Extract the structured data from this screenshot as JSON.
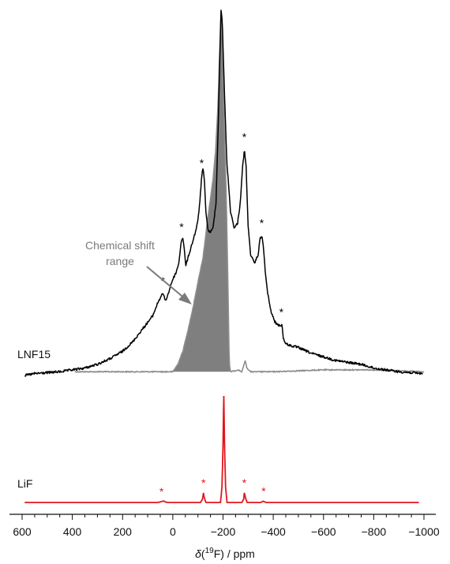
{
  "chart_data": {
    "type": "line",
    "title": "",
    "xlabel": {
      "italic": "δ",
      "pre": "(",
      "sup": "19",
      "post": "F) / ppm"
    },
    "xlim": [
      610,
      -1030
    ],
    "x_ticks": [
      600,
      400,
      200,
      0,
      -200,
      -400,
      -600,
      -800,
      -1000
    ],
    "x_tick_labels": [
      "600",
      "400",
      "200",
      "0",
      "−200",
      "−400",
      "−600",
      "−800",
      "−1000"
    ],
    "colors": {
      "lnf15": "#000000",
      "range_fill": "#7f7f7f",
      "range_line": "#8c8c8c",
      "lif": "#e3161d",
      "annotation": "#7a7a7a"
    },
    "series": [
      {
        "name": "LNF15",
        "style": "black",
        "baseline": 0.02,
        "points": [
          [
            590,
            0.0
          ],
          [
            550,
            0.01
          ],
          [
            500,
            0.015
          ],
          [
            450,
            0.02
          ],
          [
            400,
            0.03
          ],
          [
            350,
            0.04
          ],
          [
            300,
            0.06
          ],
          [
            250,
            0.09
          ],
          [
            200,
            0.13
          ],
          [
            160,
            0.18
          ],
          [
            120,
            0.25
          ],
          [
            80,
            0.32
          ],
          [
            60,
            0.39
          ],
          [
            45,
            0.43
          ],
          [
            38,
            0.44
          ],
          [
            30,
            0.4
          ],
          [
            20,
            0.43
          ],
          [
            5,
            0.5
          ],
          [
            -5,
            0.53
          ],
          [
            -15,
            0.56
          ],
          [
            -25,
            0.61
          ],
          [
            -33,
            0.72
          ],
          [
            -40,
            0.74
          ],
          [
            -47,
            0.66
          ],
          [
            -52,
            0.59
          ],
          [
            -60,
            0.63
          ],
          [
            -75,
            0.7
          ],
          [
            -90,
            0.77
          ],
          [
            -100,
            0.83
          ],
          [
            -108,
            0.94
          ],
          [
            -115,
            1.07
          ],
          [
            -120,
            1.11
          ],
          [
            -125,
            1.06
          ],
          [
            -132,
            0.88
          ],
          [
            -140,
            0.78
          ],
          [
            -150,
            0.77
          ],
          [
            -160,
            0.79
          ],
          [
            -172,
            0.93
          ],
          [
            -180,
            1.3
          ],
          [
            -187,
            1.7
          ],
          [
            -192,
            1.96
          ],
          [
            -197,
            1.9
          ],
          [
            -205,
            1.55
          ],
          [
            -215,
            1.15
          ],
          [
            -230,
            0.88
          ],
          [
            -245,
            0.79
          ],
          [
            -258,
            0.82
          ],
          [
            -268,
            0.92
          ],
          [
            -278,
            1.12
          ],
          [
            -285,
            1.21
          ],
          [
            -292,
            1.12
          ],
          [
            -300,
            0.8
          ],
          [
            -310,
            0.65
          ],
          [
            -325,
            0.6
          ],
          [
            -340,
            0.65
          ],
          [
            -348,
            0.74
          ],
          [
            -355,
            0.75
          ],
          [
            -362,
            0.67
          ],
          [
            -370,
            0.53
          ],
          [
            -378,
            0.44
          ],
          [
            -390,
            0.35
          ],
          [
            -405,
            0.29
          ],
          [
            -420,
            0.27
          ],
          [
            -435,
            0.27
          ],
          [
            -440,
            0.2
          ],
          [
            -450,
            0.17
          ],
          [
            -470,
            0.16
          ],
          [
            -500,
            0.15
          ],
          [
            -550,
            0.12
          ],
          [
            -600,
            0.1
          ],
          [
            -650,
            0.08
          ],
          [
            -700,
            0.07
          ],
          [
            -750,
            0.06
          ],
          [
            -800,
            0.04
          ],
          [
            -850,
            0.03
          ],
          [
            -900,
            0.02
          ],
          [
            -950,
            0.015
          ],
          [
            -995,
            0.01
          ]
        ]
      },
      {
        "name": "Chemical shift range",
        "style": "gray-fill",
        "baseline": 0.02,
        "points": [
          [
            390,
            0.02
          ],
          [
            200,
            0.02
          ],
          [
            100,
            0.02
          ],
          [
            50,
            0.02
          ],
          [
            0,
            0.02
          ],
          [
            -20,
            0.06
          ],
          [
            -40,
            0.13
          ],
          [
            -60,
            0.24
          ],
          [
            -80,
            0.36
          ],
          [
            -100,
            0.5
          ],
          [
            -120,
            0.63
          ],
          [
            -140,
            0.85
          ],
          [
            -160,
            1.05
          ],
          [
            -170,
            1.2
          ],
          [
            -180,
            1.45
          ],
          [
            -187,
            1.75
          ],
          [
            -192,
            1.96
          ],
          [
            -198,
            1.7
          ],
          [
            -205,
            1.35
          ],
          [
            -212,
            1.0
          ],
          [
            -218,
            0.6
          ],
          [
            -222,
            0.28
          ],
          [
            -225,
            0.06
          ],
          [
            -230,
            0.02
          ],
          [
            -260,
            0.03
          ],
          [
            -275,
            0.02
          ],
          [
            -282,
            0.05
          ],
          [
            -288,
            0.08
          ],
          [
            -295,
            0.04
          ],
          [
            -310,
            0.02
          ],
          [
            -400,
            0.02
          ],
          [
            -600,
            0.03
          ],
          [
            -800,
            0.03
          ],
          [
            -1000,
            0.02
          ]
        ]
      },
      {
        "name": "LiF",
        "style": "red",
        "baseline": 0.0,
        "points": [
          [
            590,
            0.0
          ],
          [
            60,
            0.0
          ],
          [
            50,
            0.005
          ],
          [
            40,
            0.012
          ],
          [
            35,
            0.013
          ],
          [
            30,
            0.005
          ],
          [
            20,
            0.0
          ],
          [
            -110,
            0.0
          ],
          [
            -118,
            0.03
          ],
          [
            -122,
            0.09
          ],
          [
            -126,
            0.04
          ],
          [
            -132,
            0.0
          ],
          [
            -190,
            0.0
          ],
          [
            -196,
            0.15
          ],
          [
            -200,
            0.55
          ],
          [
            -203,
            1.0
          ],
          [
            -206,
            0.55
          ],
          [
            -210,
            0.15
          ],
          [
            -216,
            0.0
          ],
          [
            -275,
            0.0
          ],
          [
            -282,
            0.03
          ],
          [
            -285,
            0.09
          ],
          [
            -290,
            0.04
          ],
          [
            -296,
            0.0
          ],
          [
            -350,
            0.0
          ],
          [
            -355,
            0.006
          ],
          [
            -360,
            0.012
          ],
          [
            -365,
            0.006
          ],
          [
            -372,
            0.0
          ],
          [
            -980,
            0.0
          ]
        ]
      }
    ],
    "spectrum_labels": [
      "LNF15",
      "LiF"
    ],
    "lnf15_sideband_stars": [
      {
        "x": 40,
        "text": "*"
      },
      {
        "x": -35,
        "text": "*"
      },
      {
        "x": -115,
        "text": "*"
      },
      {
        "x": -285,
        "text": "*"
      },
      {
        "x": -354,
        "text": "*"
      },
      {
        "x": -432,
        "text": "*"
      }
    ],
    "lif_sideband_stars": [
      {
        "x": 45,
        "text": "*"
      },
      {
        "x": -122,
        "text": "*"
      },
      {
        "x": -285,
        "text": "*"
      },
      {
        "x": -362,
        "text": "*"
      }
    ],
    "annotation": {
      "lines": [
        "Chemical shift",
        "range"
      ]
    }
  }
}
